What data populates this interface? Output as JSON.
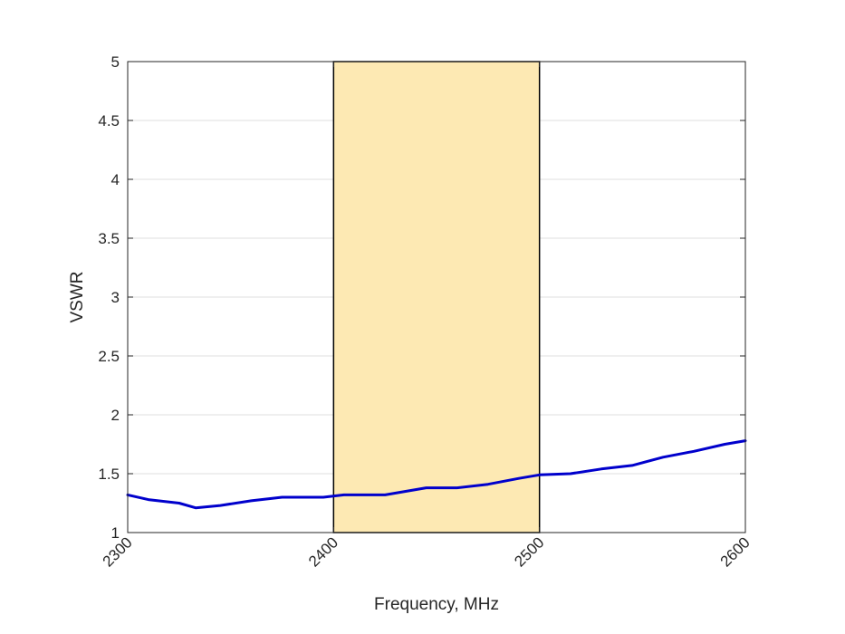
{
  "chart_data": {
    "type": "line",
    "title": "",
    "xlabel": "Frequency, MHz",
    "ylabel": "VSWR",
    "xlim": [
      2300,
      2600
    ],
    "ylim": [
      1,
      5
    ],
    "xticks": [
      2300,
      2400,
      2500,
      2600
    ],
    "yticks": [
      1,
      1.5,
      2,
      2.5,
      3,
      3.5,
      4,
      4.5,
      5
    ],
    "grid": "horizontal",
    "band": {
      "x0": 2400,
      "x1": 2500,
      "color": "#fde9b3",
      "edge": "#000000"
    },
    "series": [
      {
        "color": "#0000cc",
        "x": [
          2300,
          2310,
          2325,
          2333,
          2345,
          2360,
          2375,
          2385,
          2395,
          2405,
          2425,
          2445,
          2460,
          2475,
          2490,
          2500,
          2515,
          2530,
          2545,
          2560,
          2575,
          2590,
          2600
        ],
        "y": [
          1.32,
          1.28,
          1.25,
          1.21,
          1.23,
          1.27,
          1.3,
          1.3,
          1.3,
          1.32,
          1.32,
          1.38,
          1.38,
          1.41,
          1.46,
          1.49,
          1.5,
          1.54,
          1.57,
          1.64,
          1.69,
          1.75,
          1.78
        ]
      }
    ]
  }
}
